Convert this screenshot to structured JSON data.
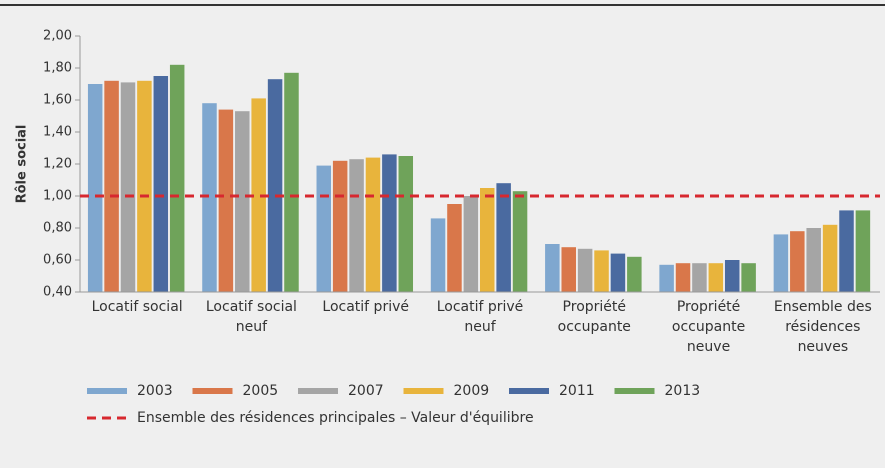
{
  "chart_data": {
    "type": "bar",
    "y_label": "Rôle social",
    "categories": [
      "Locatif social",
      "Locatif social neuf",
      "Locatif privé",
      "Locatif privé neuf",
      "Propriété occupante",
      "Propriété occupante neuve",
      "Ensemble des résidences neuves"
    ],
    "series": [
      {
        "name": "2003",
        "color": "#7fa7cf",
        "values": [
          1.7,
          1.58,
          1.19,
          0.86,
          0.7,
          0.57,
          0.76
        ]
      },
      {
        "name": "2005",
        "color": "#d9774a",
        "values": [
          1.72,
          1.54,
          1.22,
          0.95,
          0.68,
          0.58,
          0.78
        ]
      },
      {
        "name": "2007",
        "color": "#a5a5a5",
        "values": [
          1.71,
          1.53,
          1.23,
          1.0,
          0.67,
          0.58,
          0.8
        ]
      },
      {
        "name": "2009",
        "color": "#e8b43c",
        "values": [
          1.72,
          1.61,
          1.24,
          1.05,
          0.66,
          0.58,
          0.82
        ]
      },
      {
        "name": "2011",
        "color": "#4a6aa0",
        "values": [
          1.75,
          1.73,
          1.26,
          1.08,
          0.64,
          0.6,
          0.91
        ]
      },
      {
        "name": "2013",
        "color": "#6fa35a",
        "values": [
          1.82,
          1.77,
          1.25,
          1.03,
          0.62,
          0.58,
          0.91
        ]
      }
    ],
    "reference_line": {
      "value": 1.0,
      "label": "Ensemble des résidences principales – Valeur d'équilibre",
      "color": "#d7282f"
    },
    "ylim": [
      0.4,
      2.0
    ],
    "yticks": [
      {
        "value": 0.4,
        "label": "0,40"
      },
      {
        "value": 0.6,
        "label": "0,60"
      },
      {
        "value": 0.8,
        "label": "0,80"
      },
      {
        "value": 1.0,
        "label": "1,00"
      },
      {
        "value": 1.2,
        "label": "1,20"
      },
      {
        "value": 1.4,
        "label": "1,40"
      },
      {
        "value": 1.6,
        "label": "1,60"
      },
      {
        "value": 1.8,
        "label": "1,80"
      },
      {
        "value": 2.0,
        "label": "2,00"
      }
    ]
  }
}
